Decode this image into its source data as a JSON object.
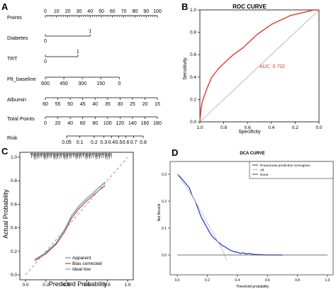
{
  "panels": {
    "A": "A",
    "B": "B",
    "C": "C",
    "D": "D"
  },
  "chart_data": [
    {
      "panel": "A",
      "type": "nomogram",
      "rows": [
        {
          "name": "Points",
          "ticks": [
            "0",
            "10",
            "20",
            "30",
            "40",
            "50",
            "60",
            "70",
            "80",
            "90",
            "100"
          ],
          "values": [
            0,
            10,
            20,
            30,
            40,
            50,
            60,
            70,
            80,
            90,
            100
          ]
        },
        {
          "name": "Diabetes",
          "ticks": [
            "0",
            "1"
          ],
          "points": [
            0,
            40
          ]
        },
        {
          "name": "TRT",
          "ticks": [
            "0",
            "1"
          ],
          "points": [
            0,
            29
          ]
        },
        {
          "name": "Plt_baseline",
          "ticks": [
            "600",
            "450",
            "300",
            "150",
            "0"
          ],
          "points": [
            0,
            16.5,
            33,
            49.5,
            66
          ]
        },
        {
          "name": "Albumin",
          "ticks": [
            "60",
            "55",
            "50",
            "45",
            "40",
            "35",
            "30",
            "25",
            "20",
            "15"
          ],
          "points": [
            0,
            11.1,
            22.2,
            33.3,
            44.4,
            55.6,
            66.7,
            77.8,
            88.9,
            100
          ]
        },
        {
          "name": "Total Points",
          "ticks": [
            "0",
            "20",
            "40",
            "60",
            "80",
            "100",
            "120",
            "140",
            "160",
            "180"
          ],
          "values": [
            0,
            20,
            40,
            60,
            80,
            100,
            120,
            140,
            160,
            180
          ]
        },
        {
          "name": "Risk",
          "ticks": [
            "0.05",
            "0.1",
            "0.2",
            "0.3",
            "0.4",
            "0.5",
            "0.6",
            "0.7",
            "0.8"
          ],
          "values": [
            0.05,
            0.1,
            0.2,
            0.3,
            0.4,
            0.5,
            0.6,
            0.7,
            0.8
          ]
        }
      ]
    },
    {
      "panel": "B",
      "type": "line",
      "title": "ROC CURVE",
      "xlabel": "Specificity",
      "ylabel": "Sensitivity",
      "annotation": "AUC: 0.702",
      "xlim": [
        1.0,
        0.0
      ],
      "ylim": [
        0.0,
        1.0
      ],
      "xticks": [
        "1.0",
        "0.8",
        "0.6",
        "0.4",
        "0.2",
        "0.0"
      ],
      "yticks": [
        "0.0",
        "0.2",
        "0.4",
        "0.6",
        "0.8",
        "1.0"
      ],
      "series": [
        {
          "values_x_specificity": [
            1.0,
            0.99,
            0.98,
            0.96,
            0.94,
            0.92,
            0.9,
            0.87,
            0.84,
            0.8,
            0.76,
            0.72,
            0.68,
            0.64,
            0.6,
            0.56,
            0.52,
            0.48,
            0.44,
            0.4,
            0.36,
            0.32,
            0.28,
            0.24,
            0.2,
            0.16,
            0.12,
            0.08,
            0.04,
            0.0
          ],
          "values_y_sensitivity": [
            0.0,
            0.12,
            0.18,
            0.24,
            0.3,
            0.35,
            0.4,
            0.44,
            0.48,
            0.52,
            0.56,
            0.6,
            0.63,
            0.66,
            0.7,
            0.74,
            0.78,
            0.81,
            0.84,
            0.87,
            0.89,
            0.91,
            0.93,
            0.95,
            0.96,
            0.97,
            0.98,
            0.99,
            1.0,
            1.0
          ]
        }
      ],
      "reference_line": [
        [
          1.0,
          0.0
        ],
        [
          0.0,
          1.0
        ]
      ]
    },
    {
      "panel": "C",
      "type": "line",
      "xlabel": "Predicted Probability",
      "ylabel": "Actual Probability",
      "xlim": [
        0.0,
        1.0
      ],
      "ylim": [
        0.0,
        1.0
      ],
      "xticks": [
        "0.0",
        "0.2",
        "0.4",
        "0.6",
        "0.8",
        "1.0"
      ],
      "yticks": [
        "0.0",
        "0.2",
        "0.4",
        "0.6",
        "0.8",
        "1.0"
      ],
      "legend": "bottom-right",
      "series": [
        {
          "name": "Apparent",
          "color": "#3aa1c9",
          "x": [
            0.09,
            0.2,
            0.3,
            0.38,
            0.45,
            0.52,
            0.6,
            0.68,
            0.78
          ],
          "y": [
            0.13,
            0.19,
            0.27,
            0.38,
            0.5,
            0.58,
            0.65,
            0.71,
            0.79
          ]
        },
        {
          "name": "Bias corrected",
          "color": "#e23a2b",
          "x": [
            0.09,
            0.2,
            0.3,
            0.38,
            0.45,
            0.52,
            0.6,
            0.68,
            0.78
          ],
          "y": [
            0.12,
            0.18,
            0.26,
            0.36,
            0.48,
            0.56,
            0.63,
            0.69,
            0.76
          ]
        },
        {
          "name": "Ideal line",
          "color": "#9a9a9a",
          "x": [
            0.0,
            1.0
          ],
          "y": [
            0.0,
            1.0
          ]
        }
      ]
    },
    {
      "panel": "D",
      "type": "line",
      "title": "DCA CURVE",
      "xlabel": "Threshold probability",
      "ylabel": "Net Benefit",
      "xlim": [
        0.0,
        1.0
      ],
      "ylim": [
        -0.02,
        0.32
      ],
      "xticks": [
        "0.0",
        "0.2",
        "0.4",
        "0.6",
        "0.8",
        "1.0"
      ],
      "yticks": [
        "0.0",
        "0.1",
        "0.2",
        "0.3"
      ],
      "legend": "top-right",
      "series": [
        {
          "name": "Pneumonia prediction nomogram",
          "color": "#1f2fd1",
          "x": [
            0.0,
            0.02,
            0.05,
            0.08,
            0.1,
            0.12,
            0.14,
            0.16,
            0.18,
            0.2,
            0.22,
            0.24,
            0.26,
            0.28,
            0.3,
            0.32,
            0.34,
            0.36,
            0.38,
            0.4,
            0.42,
            0.44,
            0.46,
            0.48,
            0.5,
            0.52,
            0.56,
            0.6,
            0.65,
            0.7
          ],
          "y": [
            0.3,
            0.29,
            0.27,
            0.25,
            0.22,
            0.2,
            0.17,
            0.14,
            0.12,
            0.1,
            0.08,
            0.065,
            0.055,
            0.045,
            0.035,
            0.03,
            0.022,
            0.016,
            0.012,
            0.01,
            0.006,
            0.008,
            0.004,
            0.006,
            0.003,
            0.002,
            0.001,
            0.0,
            0.0,
            0.0
          ]
        },
        {
          "name": "All",
          "color": "#b8b8b8",
          "x": [
            0.0,
            0.05,
            0.1,
            0.15,
            0.2,
            0.25,
            0.3,
            0.33
          ],
          "y": [
            0.3,
            0.26,
            0.22,
            0.17,
            0.12,
            0.07,
            0.02,
            -0.02
          ]
        },
        {
          "name": "None",
          "color": "#444444",
          "x": [
            0.0,
            1.0
          ],
          "y": [
            0.0,
            0.0
          ]
        }
      ]
    }
  ]
}
